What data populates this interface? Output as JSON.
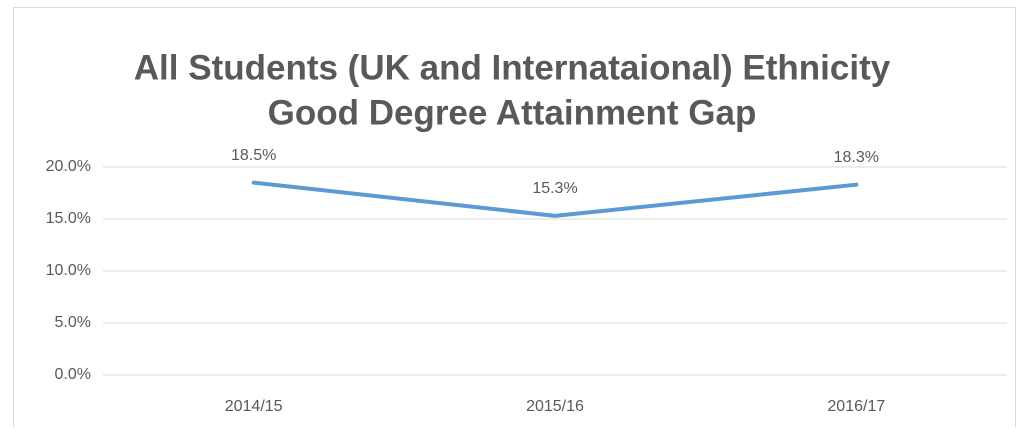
{
  "chart_data": {
    "type": "line",
    "title": [
      "All Students (UK and Internataional) Ethnicity",
      "Good Degree Attainment Gap"
    ],
    "categories": [
      "2014/15",
      "2015/16",
      "2016/17"
    ],
    "values": [
      18.5,
      15.3,
      18.3
    ],
    "value_labels": [
      "18.5%",
      "15.3%",
      "18.3%"
    ],
    "color": "#5b9bd5",
    "ylim": [
      0,
      20
    ],
    "yticks": [
      {
        "value": 0,
        "label": "0.0%"
      },
      {
        "value": 5,
        "label": "5.0%"
      },
      {
        "value": 10,
        "label": "10.0%"
      },
      {
        "value": 15,
        "label": "15.0%"
      },
      {
        "value": 20,
        "label": "20.0%"
      }
    ],
    "grid": true
  }
}
